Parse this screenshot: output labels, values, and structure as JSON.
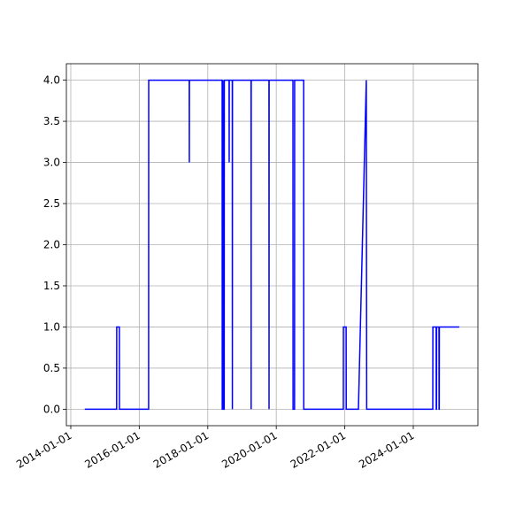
{
  "chart_data": {
    "type": "line",
    "x": [
      "2014-05-30",
      "2015-05-05",
      "2015-05-06",
      "2015-06-03",
      "2015-06-04",
      "2016-04-10",
      "2016-04-11",
      "2017-06-17",
      "2017-06-18",
      "2017-06-19",
      "2018-06-03",
      "2018-06-04",
      "2018-06-10",
      "2018-06-11",
      "2018-06-17",
      "2018-06-25",
      "2018-06-26",
      "2018-08-16",
      "2018-08-17",
      "2018-08-18",
      "2018-09-19",
      "2018-09-20",
      "2018-09-21",
      "2019-04-07",
      "2019-04-08",
      "2019-04-09",
      "2019-10-15",
      "2019-10-16",
      "2019-10-17",
      "2020-06-27",
      "2020-06-28",
      "2020-07-14",
      "2020-07-15",
      "2020-10-19",
      "2020-10-20",
      "2021-12-16",
      "2021-12-17",
      "2022-01-15",
      "2022-01-16",
      "2022-05-26",
      "2022-08-18",
      "2022-08-22",
      "2024-07-27",
      "2024-07-28",
      "2024-09-01",
      "2024-09-02",
      "2024-09-05",
      "2024-09-06",
      "2024-10-01",
      "2024-10-02",
      "2024-10-04",
      "2024-10-05",
      "2025-05-05"
    ],
    "series": [
      {
        "color": "#0000ff",
        "values": [
          0,
          0,
          1,
          1,
          0,
          0,
          4,
          4,
          3,
          4,
          4,
          0,
          0,
          4,
          0,
          0,
          4,
          4,
          3,
          4,
          4,
          0,
          4,
          4,
          0,
          4,
          4,
          0,
          4,
          4,
          0,
          0,
          4,
          4,
          0,
          0,
          1,
          1,
          0,
          0,
          4,
          0,
          0,
          1,
          1,
          0,
          0,
          1,
          1,
          0,
          0,
          1,
          1
        ]
      }
    ],
    "xlim": [
      "2013-11-15",
      "2025-11-20"
    ],
    "xticks": [
      "2014-01-01",
      "2016-01-01",
      "2018-01-01",
      "2020-01-01",
      "2022-01-01",
      "2024-01-01"
    ],
    "ylim": [
      -0.2,
      4.2
    ],
    "yticks": [
      {
        "value": 0,
        "label": "0.0"
      },
      {
        "value": 0.5,
        "label": "0.5"
      },
      {
        "value": 1,
        "label": "1.0"
      },
      {
        "value": 1.5,
        "label": "1.5"
      },
      {
        "value": 2,
        "label": "2.0"
      },
      {
        "value": 2.5,
        "label": "2.5"
      },
      {
        "value": 3,
        "label": "3.0"
      },
      {
        "value": 3.5,
        "label": "3.5"
      },
      {
        "value": 4,
        "label": "4.0"
      }
    ],
    "grid": true
  }
}
